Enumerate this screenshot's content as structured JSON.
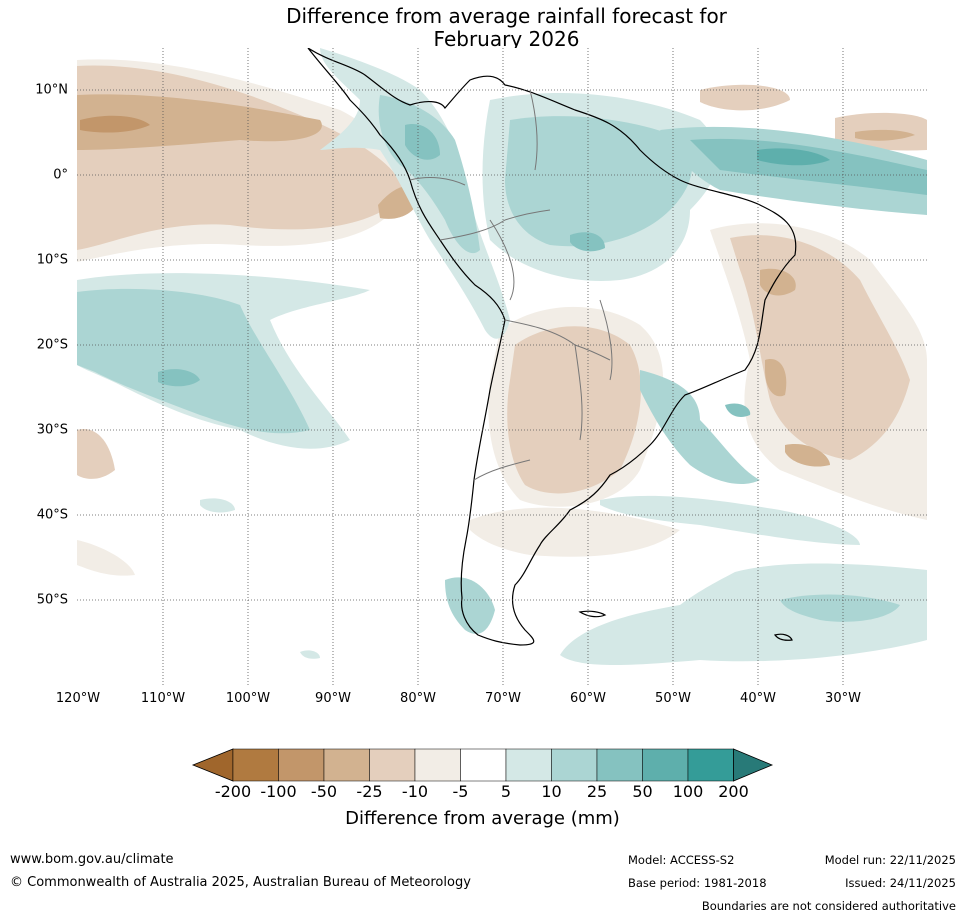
{
  "title": {
    "line1": "Difference from average rainfall forecast for",
    "line2": "February 2026"
  },
  "map": {
    "lon_labels": [
      "120°W",
      "110°W",
      "100°W",
      "90°W",
      "80°W",
      "70°W",
      "60°W",
      "50°W",
      "40°W",
      "30°W"
    ],
    "lat_labels": [
      "10°N",
      "0°",
      "10°S",
      "20°S",
      "30°S",
      "40°S",
      "50°S"
    ]
  },
  "colorbar": {
    "label": "Difference from average (mm)",
    "ticks": [
      "-200",
      "-100",
      "-50",
      "-25",
      "-10",
      "-5",
      "5",
      "10",
      "25",
      "50",
      "100",
      "200"
    ],
    "colors": [
      "#a0662c",
      "#b07a40",
      "#c2966a",
      "#d2b290",
      "#e4cfbd",
      "#f2ede6",
      "#ffffff",
      "#d4e8e6",
      "#abd5d3",
      "#85c2c0",
      "#5eafac",
      "#349c98",
      "#287a78"
    ]
  },
  "footer": {
    "url": "www.bom.gov.au/climate",
    "copyright": "© Commonwealth of Australia 2025, Australian Bureau of Meteorology",
    "model": "Model: ACCESS-S2",
    "base_period": "Base period: 1981-2018",
    "model_run": "Model run: 22/11/2025",
    "issued": "Issued: 24/11/2025",
    "disclaimer": "Boundaries are not considered authoritative"
  }
}
